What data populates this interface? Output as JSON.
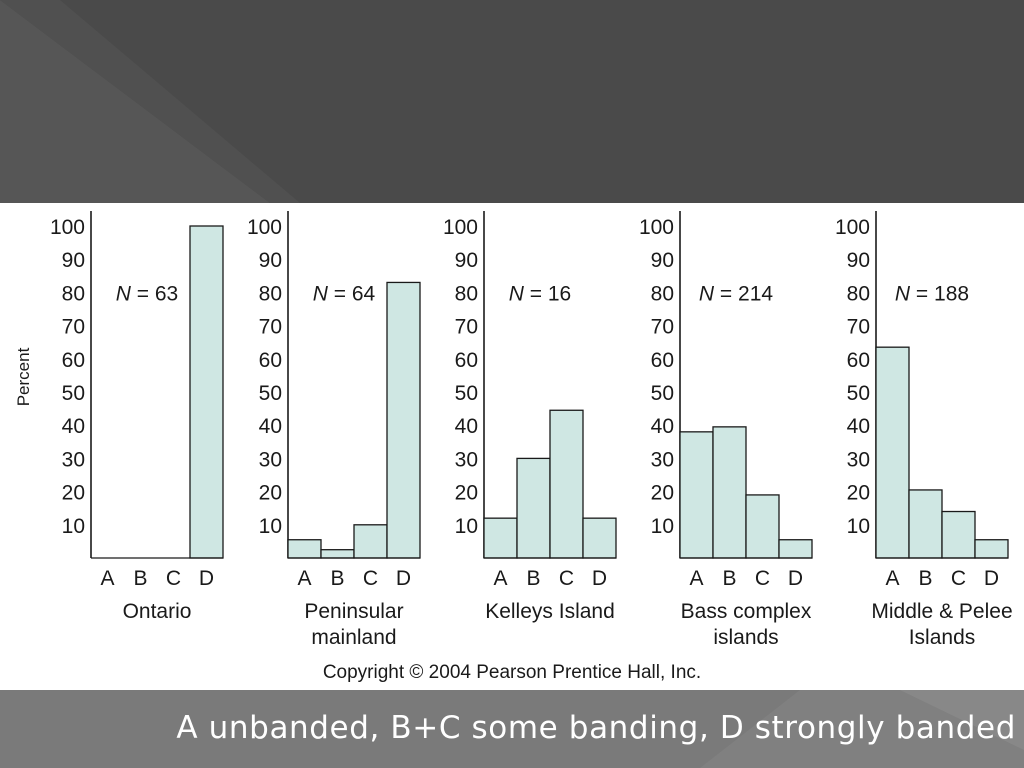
{
  "chart_data": [
    {
      "type": "bar",
      "label_lines": [
        "Ontario"
      ],
      "n_text": "N = 63",
      "categories": [
        "A",
        "B",
        "C",
        "D"
      ],
      "values": [
        0,
        0,
        0,
        100
      ],
      "ylim": [
        0,
        100
      ],
      "yticks": [
        10,
        20,
        30,
        40,
        50,
        60,
        70,
        80,
        90,
        100
      ],
      "ylabel": "Percent"
    },
    {
      "type": "bar",
      "label_lines": [
        "Peninsular",
        "mainland"
      ],
      "n_text": "N = 64",
      "categories": [
        "A",
        "B",
        "C",
        "D"
      ],
      "values": [
        5.5,
        2.5,
        10,
        83
      ],
      "ylim": [
        0,
        100
      ],
      "yticks": [
        10,
        20,
        30,
        40,
        50,
        60,
        70,
        80,
        90,
        100
      ]
    },
    {
      "type": "bar",
      "label_lines": [
        "Kelleys Island"
      ],
      "n_text": "N = 16",
      "categories": [
        "A",
        "B",
        "C",
        "D"
      ],
      "values": [
        12,
        30,
        44.5,
        12
      ],
      "ylim": [
        0,
        100
      ],
      "yticks": [
        10,
        20,
        30,
        40,
        50,
        60,
        70,
        80,
        90,
        100
      ]
    },
    {
      "type": "bar",
      "label_lines": [
        "Bass complex",
        "islands"
      ],
      "n_text": "N =  214",
      "categories": [
        "A",
        "B",
        "C",
        "D"
      ],
      "values": [
        38,
        39.5,
        19,
        5.5
      ],
      "ylim": [
        0,
        100
      ],
      "yticks": [
        10,
        20,
        30,
        40,
        50,
        60,
        70,
        80,
        90,
        100
      ]
    },
    {
      "type": "bar",
      "label_lines": [
        "Middle & Pelee",
        "Islands"
      ],
      "n_text": "N = 188",
      "categories": [
        "A",
        "B",
        "C",
        "D"
      ],
      "values": [
        63.5,
        20.5,
        14,
        5.5
      ],
      "ylim": [
        0,
        100
      ],
      "yticks": [
        10,
        20,
        30,
        40,
        50,
        60,
        70,
        80,
        90,
        100
      ]
    }
  ],
  "copyright": "Copyright © 2004 Pearson Prentice Hall, Inc.",
  "caption": "A unbanded, B+C some banding, D strongly banded",
  "colors": {
    "bar_fill": "#cfe7e3",
    "bar_stroke": "#1a1a1a",
    "top_band": "#4a4a4a",
    "bottom_band": "#7a7a7a"
  }
}
